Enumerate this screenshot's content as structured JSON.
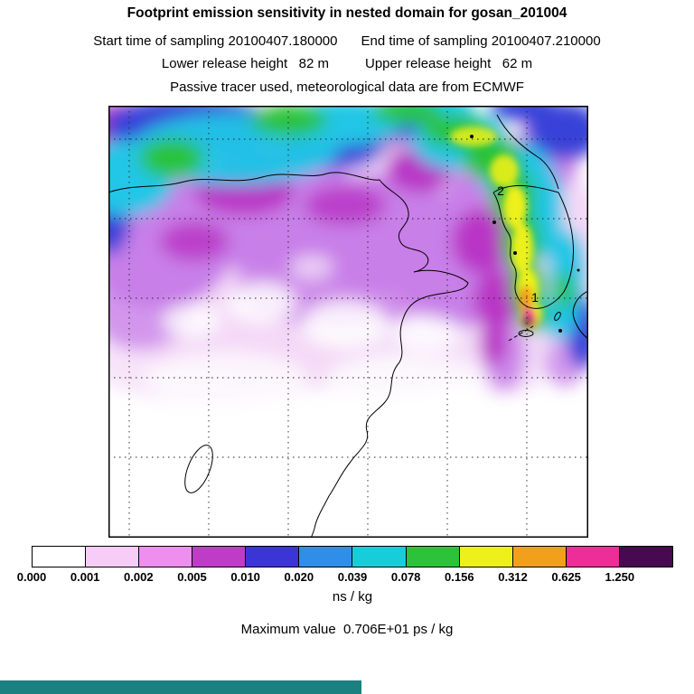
{
  "header": {
    "title": "Footprint emission sensitivity in nested domain for gosan_201004",
    "start_time": "Start time of sampling 20100407.180000",
    "end_time": "End time of sampling 20100407.210000",
    "lower_release": "Lower release height   82 m",
    "upper_release": "Upper release height   62 m",
    "tracer_line": "Passive tracer used, meteorological data are from ECMWF"
  },
  "map": {
    "markers": [
      {
        "label": "1"
      },
      {
        "label": "2"
      }
    ]
  },
  "footer": {
    "units": "ns / kg",
    "max_line": "Maximum value  0.706E+01 ps / kg"
  },
  "colors": {
    "bottom_strip": "#1a8080",
    "coastline": "#000000",
    "grid": "#222222"
  },
  "chart_data": {
    "type": "heatmap",
    "title": "Footprint emission sensitivity in nested domain for gosan_201004",
    "station": "gosan_201004",
    "sampling_start": "20100407.180000",
    "sampling_end": "20100407.210000",
    "lower_release_height_m": 82,
    "upper_release_height_m": 62,
    "tracer": "Passive tracer used, meteorological data are from ECMWF",
    "units": "ns / kg",
    "max_value": "0.706E+01",
    "max_value_units": "ps / kg",
    "markers_on_map": [
      "1",
      "2"
    ],
    "colorbar": {
      "units": "ns / kg",
      "levels": [
        0.0,
        0.001,
        0.002,
        0.005,
        0.01,
        0.02,
        0.039,
        0.078,
        0.156,
        0.312,
        0.625,
        1.25
      ],
      "tick_labels": [
        "0.000",
        "0.001",
        "0.002",
        "0.005",
        "0.010",
        "0.020",
        "0.039",
        "0.078",
        "0.156",
        "0.312",
        "0.625",
        "1.250"
      ],
      "colors": [
        "#ffffff",
        "#f7cdf7",
        "#ee8eee",
        "#bf3cc9",
        "#3b35d8",
        "#2f8fe8",
        "#17cdd9",
        "#2cc33a",
        "#edf01a",
        "#f2a01c",
        "#ee2d99",
        "#47094f"
      ],
      "segment_rule": "color i covers levels[i] to levels[i+1]; final dark color covers values above 1.250"
    },
    "legend_position": "bottom",
    "grid": "dashed lat-lon grid over map, no axis tick labels"
  }
}
